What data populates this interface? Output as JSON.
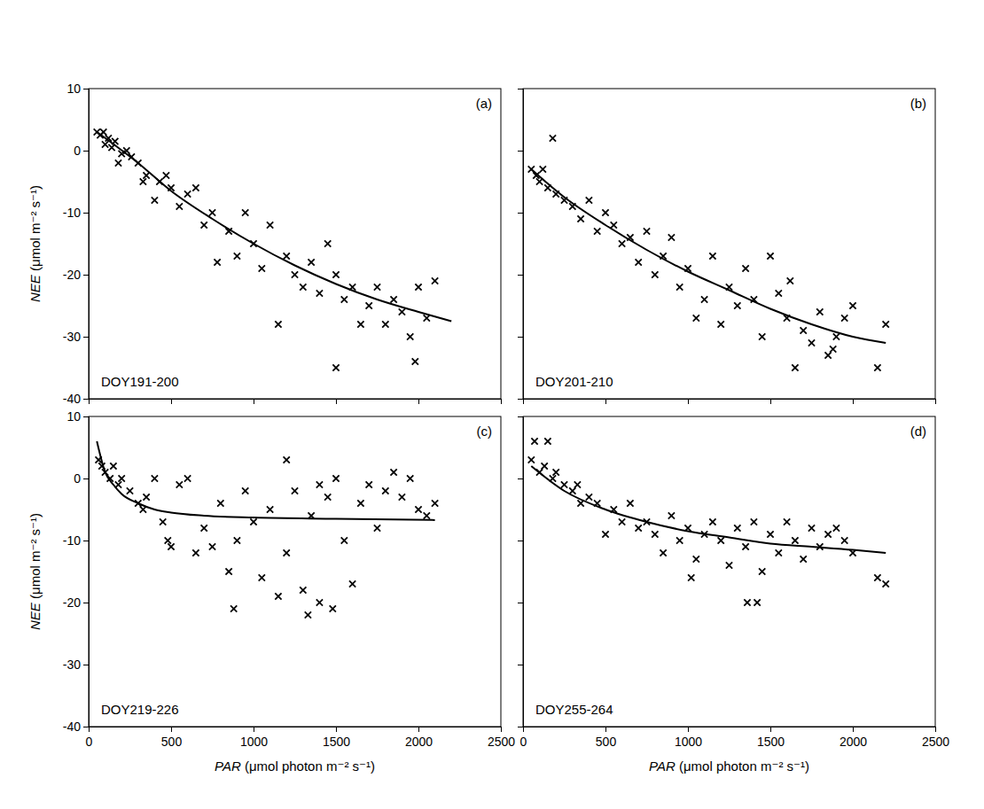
{
  "chart_data": [
    {
      "type": "scatter",
      "label": "(a)",
      "annotation": "DOY191-200",
      "y_label": "NEE (μmol m⁻² s⁻¹)",
      "tick_labels": "y",
      "xlim": [
        0,
        2500
      ],
      "ylim": [
        -40,
        10
      ],
      "xticks": [
        0,
        500,
        1000,
        1500,
        2000,
        2500
      ],
      "yticks": [
        -40,
        -30,
        -20,
        -10,
        0,
        10
      ],
      "series": [
        {
          "type": "scatter",
          "marker": "x",
          "color": "#000000",
          "x": [
            50,
            70,
            90,
            100,
            120,
            140,
            160,
            180,
            200,
            230,
            260,
            300,
            330,
            350,
            400,
            430,
            470,
            500,
            550,
            600,
            650,
            700,
            750,
            780,
            850,
            900,
            950,
            1000,
            1050,
            1100,
            1150,
            1200,
            1250,
            1300,
            1350,
            1400,
            1450,
            1500,
            1500,
            1550,
            1600,
            1650,
            1700,
            1750,
            1800,
            1850,
            1900,
            1950,
            2000,
            2050,
            2100,
            1980
          ],
          "values": [
            3,
            2.5,
            3,
            1,
            2,
            0.5,
            1.5,
            -2,
            -0.5,
            0,
            -1,
            -2,
            -5,
            -4,
            -8,
            -5,
            -4,
            -6,
            -9,
            -7,
            -6,
            -12,
            -10,
            -18,
            -13,
            -17,
            -10,
            -15,
            -19,
            -12,
            -28,
            -17,
            -20,
            -22,
            -18,
            -23,
            -15,
            -20,
            -35,
            -24,
            -22,
            -28,
            -25,
            -22,
            -28,
            -24,
            -26,
            -30,
            -22,
            -27,
            -21,
            -34
          ]
        },
        {
          "type": "line",
          "line_style": "solid",
          "color": "#000000",
          "x": [
            50,
            300,
            500,
            750,
            1000,
            1250,
            1500,
            1750,
            2000,
            2200
          ],
          "values": [
            3,
            -2,
            -6.5,
            -11,
            -15,
            -18.5,
            -21.5,
            -24,
            -26,
            -27.5
          ]
        }
      ]
    },
    {
      "type": "scatter",
      "label": "(b)",
      "annotation": "DOY201-210",
      "tick_labels": false,
      "xlim": [
        0,
        2500
      ],
      "ylim": [
        -40,
        10
      ],
      "xticks": [
        0,
        500,
        1000,
        1500,
        2000,
        2500
      ],
      "yticks": [
        -40,
        -30,
        -20,
        -10,
        0,
        10
      ],
      "series": [
        {
          "type": "scatter",
          "marker": "x",
          "color": "#000000",
          "x": [
            50,
            80,
            100,
            120,
            150,
            180,
            200,
            250,
            300,
            350,
            400,
            450,
            500,
            550,
            600,
            650,
            700,
            750,
            800,
            850,
            900,
            950,
            1000,
            1050,
            1100,
            1150,
            1200,
            1250,
            1300,
            1350,
            1400,
            1450,
            1500,
            1550,
            1600,
            1650,
            1700,
            1750,
            1800,
            1850,
            1900,
            1950,
            2000,
            2150,
            2200,
            1880,
            1620
          ],
          "values": [
            -3,
            -4,
            -5,
            -3,
            -6,
            2,
            -7,
            -8,
            -9,
            -11,
            -8,
            -13,
            -10,
            -12,
            -15,
            -14,
            -18,
            -13,
            -20,
            -17,
            -14,
            -22,
            -19,
            -27,
            -24,
            -17,
            -28,
            -22,
            -25,
            -19,
            -24,
            -30,
            -17,
            -23,
            -27,
            -35,
            -29,
            -31,
            -26,
            -33,
            -30,
            -27,
            -25,
            -35,
            -28,
            -32,
            -21
          ]
        },
        {
          "type": "line",
          "line_style": "solid",
          "color": "#000000",
          "x": [
            50,
            250,
            500,
            750,
            1000,
            1250,
            1500,
            1750,
            2000,
            2200
          ],
          "values": [
            -3,
            -7.5,
            -12,
            -16,
            -19.5,
            -22.5,
            -25.5,
            -28,
            -30,
            -31
          ]
        }
      ]
    },
    {
      "type": "scatter",
      "label": "(c)",
      "annotation": "DOY219-226",
      "x_label": "PAR (μmol photon m⁻² s⁻¹)",
      "y_label": "NEE (μmol m⁻² s⁻¹)",
      "xlim": [
        0,
        2500
      ],
      "ylim": [
        -40,
        10
      ],
      "xticks": [
        0,
        500,
        1000,
        1500,
        2000,
        2500
      ],
      "yticks": [
        -40,
        -30,
        -20,
        -10,
        0,
        10
      ],
      "series": [
        {
          "type": "scatter",
          "marker": "x",
          "color": "#000000",
          "x": [
            60,
            80,
            100,
            130,
            150,
            180,
            200,
            250,
            300,
            330,
            350,
            400,
            450,
            480,
            500,
            550,
            600,
            650,
            700,
            750,
            800,
            850,
            880,
            900,
            950,
            1000,
            1050,
            1100,
            1150,
            1200,
            1250,
            1300,
            1330,
            1350,
            1400,
            1450,
            1480,
            1500,
            1550,
            1600,
            1650,
            1700,
            1750,
            1800,
            1850,
            1900,
            1950,
            2000,
            2050,
            2100,
            1400,
            1200
          ],
          "values": [
            3,
            2,
            1,
            0,
            2,
            -1,
            0,
            -2,
            -4,
            -5,
            -3,
            0,
            -7,
            -10,
            -11,
            -1,
            0,
            -12,
            -8,
            -11,
            -4,
            -15,
            -21,
            -10,
            -2,
            -7,
            -16,
            -5,
            -19,
            -12,
            -2,
            -18,
            -22,
            -6,
            -20,
            -3,
            -21,
            0,
            -10,
            -17,
            -4,
            -1,
            -8,
            -2,
            1,
            -3,
            0,
            -5,
            -6,
            -4,
            -1,
            3
          ]
        },
        {
          "type": "line",
          "line_style": "solid",
          "color": "#000000",
          "x": [
            50,
            100,
            150,
            200,
            300,
            400,
            500,
            700,
            1000,
            1500,
            2100
          ],
          "values": [
            6,
            1,
            -1,
            -2.5,
            -4,
            -5,
            -5.5,
            -6,
            -6.3,
            -6.5,
            -6.7
          ]
        }
      ]
    },
    {
      "type": "scatter",
      "label": "(d)",
      "annotation": "DOY255-264",
      "x_label": "PAR (μmol photon m⁻² s⁻¹)",
      "tick_labels": "x",
      "xlim": [
        0,
        2500
      ],
      "ylim": [
        -40,
        10
      ],
      "xticks": [
        0,
        500,
        1000,
        1500,
        2000,
        2500
      ],
      "yticks": [
        -40,
        -30,
        -20,
        -10,
        0,
        10
      ],
      "series": [
        {
          "type": "scatter",
          "marker": "x",
          "color": "#000000",
          "x": [
            50,
            70,
            100,
            130,
            150,
            180,
            200,
            250,
            300,
            330,
            350,
            400,
            450,
            500,
            550,
            600,
            650,
            700,
            750,
            800,
            850,
            900,
            950,
            1000,
            1050,
            1100,
            1150,
            1200,
            1250,
            1300,
            1350,
            1400,
            1420,
            1450,
            1500,
            1550,
            1600,
            1650,
            1700,
            1750,
            1800,
            1850,
            1900,
            1950,
            2000,
            2150,
            2200,
            1360,
            1020
          ],
          "values": [
            3,
            6,
            1,
            2,
            6,
            0,
            1,
            -1,
            -2,
            -1,
            -4,
            -3,
            -4,
            -9,
            -5,
            -7,
            -4,
            -8,
            -7,
            -9,
            -12,
            -6,
            -10,
            -8,
            -13,
            -9,
            -7,
            -10,
            -14,
            -8,
            -11,
            -7,
            -20,
            -15,
            -9,
            -12,
            -7,
            -10,
            -13,
            -8,
            -11,
            -9,
            -8,
            -10,
            -12,
            -16,
            -17,
            -20,
            -16
          ]
        },
        {
          "type": "line",
          "line_style": "solid",
          "color": "#000000",
          "x": [
            50,
            250,
            500,
            750,
            1000,
            1250,
            1500,
            1750,
            2000,
            2200
          ],
          "values": [
            2,
            -2,
            -5,
            -7,
            -8.5,
            -9.5,
            -10.5,
            -11,
            -11.5,
            -12
          ]
        }
      ]
    }
  ]
}
